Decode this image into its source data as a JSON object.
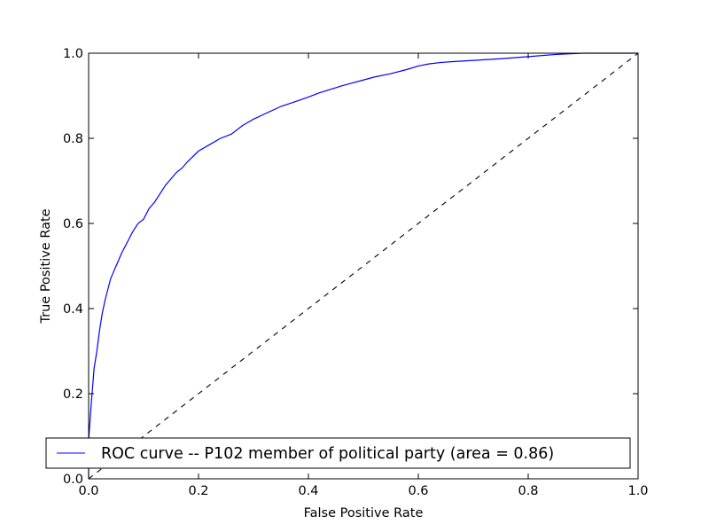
{
  "chart_data": {
    "type": "line",
    "xlabel": "False Positive Rate",
    "ylabel": "True Positive Rate",
    "xlim": [
      0.0,
      1.0
    ],
    "ylim": [
      0.0,
      1.0
    ],
    "x_ticks": [
      "0.0",
      "0.2",
      "0.4",
      "0.6",
      "0.8",
      "1.0"
    ],
    "y_ticks": [
      "0.0",
      "0.2",
      "0.4",
      "0.6",
      "0.8",
      "1.0"
    ],
    "grid": false,
    "legend_position": "lower-right",
    "series": [
      {
        "name": "ROC curve -- P102 member of political party (area = 0.86)",
        "color": "#0000ff",
        "style": "solid",
        "x": [
          0.0,
          0.0,
          0.005,
          0.01,
          0.015,
          0.02,
          0.025,
          0.03,
          0.04,
          0.05,
          0.06,
          0.07,
          0.08,
          0.09,
          0.1,
          0.11,
          0.12,
          0.13,
          0.14,
          0.15,
          0.16,
          0.17,
          0.18,
          0.2,
          0.22,
          0.24,
          0.26,
          0.28,
          0.3,
          0.32,
          0.35,
          0.38,
          0.4,
          0.42,
          0.44,
          0.46,
          0.48,
          0.5,
          0.52,
          0.55,
          0.58,
          0.6,
          0.62,
          0.64,
          0.66,
          0.7,
          0.75,
          0.8,
          0.85,
          0.9,
          0.95,
          1.0
        ],
        "y": [
          0.0,
          0.09,
          0.18,
          0.26,
          0.3,
          0.35,
          0.39,
          0.42,
          0.47,
          0.5,
          0.53,
          0.555,
          0.58,
          0.6,
          0.61,
          0.635,
          0.65,
          0.67,
          0.69,
          0.705,
          0.72,
          0.73,
          0.745,
          0.77,
          0.785,
          0.8,
          0.81,
          0.83,
          0.845,
          0.857,
          0.875,
          0.888,
          0.897,
          0.907,
          0.915,
          0.923,
          0.93,
          0.937,
          0.944,
          0.952,
          0.962,
          0.97,
          0.975,
          0.978,
          0.98,
          0.983,
          0.987,
          0.992,
          0.997,
          1.0,
          1.0,
          1.0
        ]
      },
      {
        "name": "",
        "color": "#000000",
        "style": "dashed",
        "x": [
          0.0,
          1.0
        ],
        "y": [
          0.0,
          1.0
        ]
      }
    ]
  }
}
